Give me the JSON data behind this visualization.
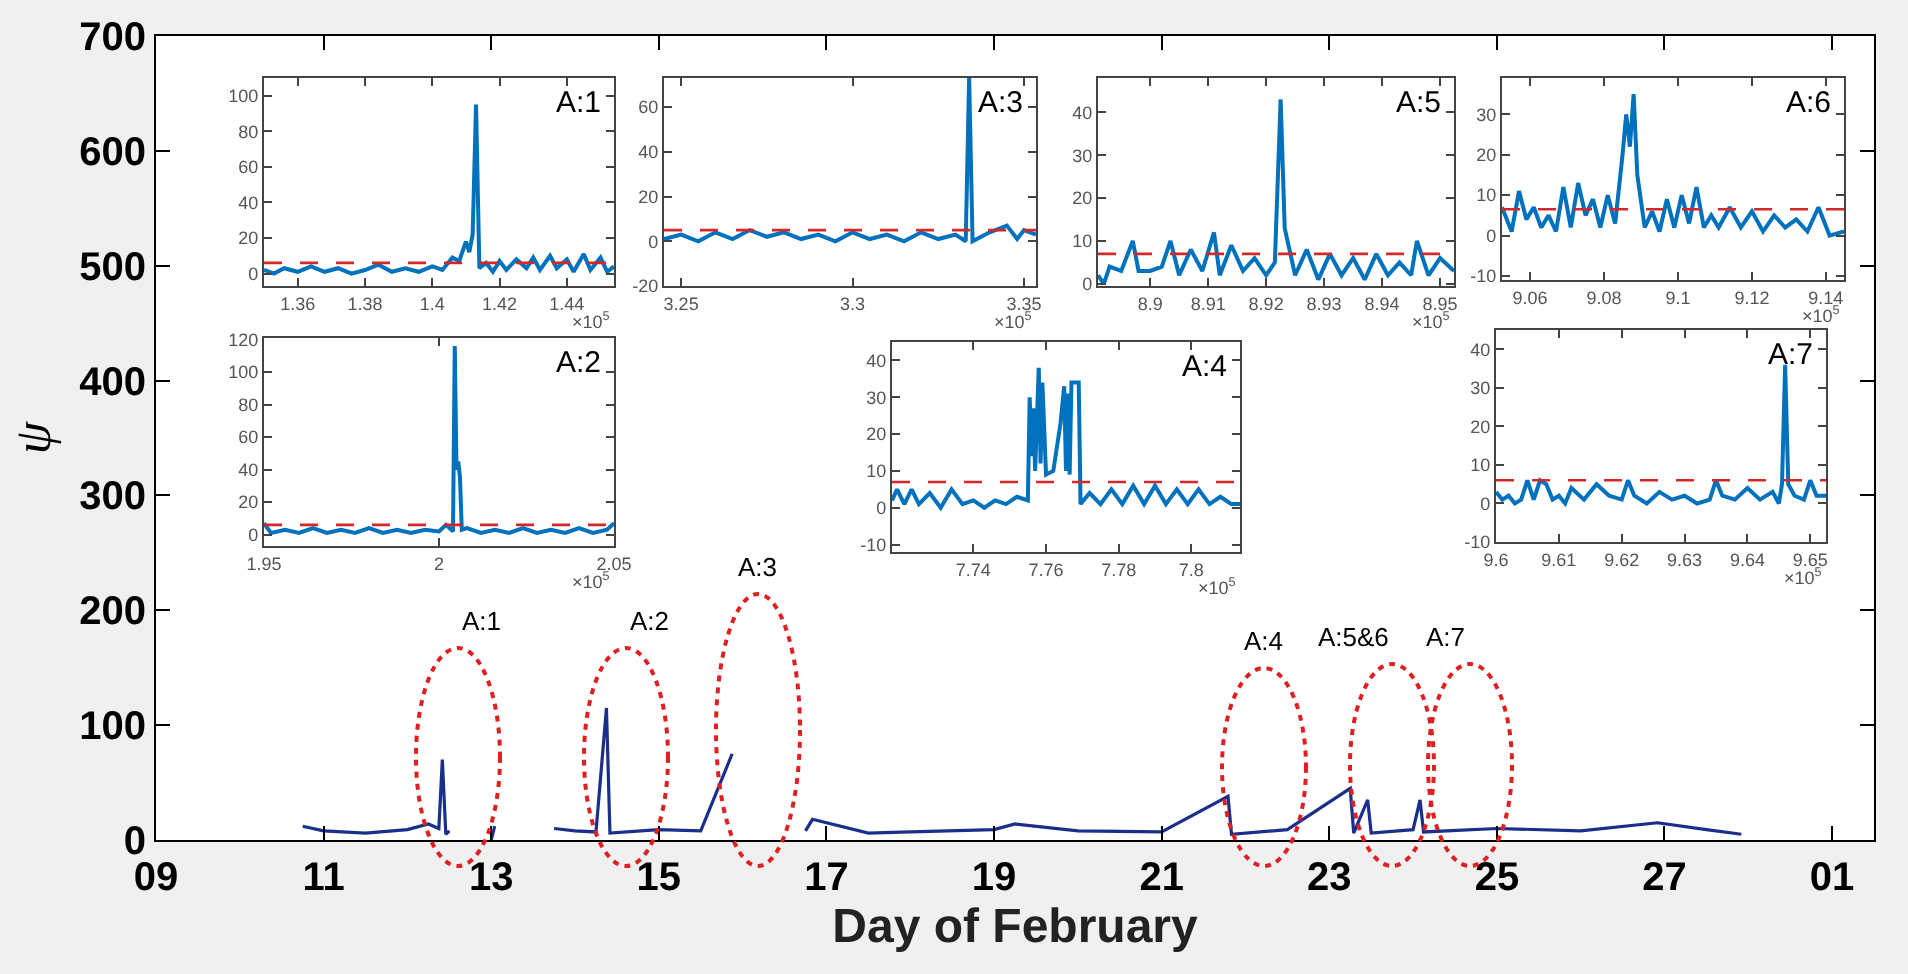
{
  "chart_data": [
    {
      "type": "line",
      "xlabel": "Day of February",
      "ylabel": "ψ",
      "grid": false,
      "line_style": "solid",
      "marker": "none",
      "series": [
        {
          "color": "#1a2f8c",
          "x": [
            "--02-10T18:00",
            "--02-11T00:00",
            "--02-11T12:00",
            "--02-12T00:00",
            "--02-12T06:00",
            "--02-12T09:00",
            "--02-12T10:00",
            "--02-12T11:00",
            "--02-12T12:00",
            "--02-12T13:00",
            "--02-13T00:00",
            "--02-13T01:00",
            "--02-13T02:00",
            "--02-13T18:00",
            "--02-14T00:00",
            "--02-14T06:00",
            "--02-14T09:00",
            "--02-14T10:00",
            "--02-15T00:00",
            "--02-15T12:00",
            "--02-15T21:00",
            "--02-15T22:00",
            "--02-16T18:00",
            "--02-16T20:00",
            "--02-17T12:00",
            "--02-18T00:00",
            "--02-19T00:00",
            "--02-19T06:00",
            "--02-20T00:00",
            "--02-21T00:00",
            "--02-21T19:00",
            "--02-21T20:00",
            "--02-22T12:00",
            "--02-23T06:00",
            "--02-23T07:00",
            "--02-23T11:00",
            "--02-23T12:00",
            "--02-24T00:00",
            "--02-24T02:00",
            "--02-24T03:00",
            "--02-25T00:00",
            "--02-26T00:00",
            "--02-26T22:00",
            "--02-27T12:00",
            "--02-27T22:00"
          ],
          "values": [
            12,
            8,
            6,
            9,
            14,
            10,
            70,
            5,
            8,
            null,
            0,
            12,
            null,
            10,
            8,
            7,
            115,
            6,
            9,
            8,
            75,
            null,
            8,
            18,
            6,
            7,
            9,
            14,
            8,
            7,
            38,
            5,
            9,
            45,
            6,
            35,
            6,
            9,
            35,
            7,
            10,
            8,
            15,
            9,
            5
          ]
        }
      ],
      "xlim": [
        "--02-09T00:00",
        "--03-01T12:00"
      ],
      "xticks": [
        {
          "value": "--02-09",
          "label": "09"
        },
        {
          "value": "--02-11",
          "label": "11"
        },
        {
          "value": "--02-13",
          "label": "13"
        },
        {
          "value": "--02-15",
          "label": "15"
        },
        {
          "value": "--02-17",
          "label": "17"
        },
        {
          "value": "--02-19",
          "label": "19"
        },
        {
          "value": "--02-21",
          "label": "21"
        },
        {
          "value": "--02-23",
          "label": "23"
        },
        {
          "value": "--02-25",
          "label": "25"
        },
        {
          "value": "--02-27",
          "label": "27"
        },
        {
          "value": "--03-01",
          "label": "01"
        }
      ],
      "ylim": [
        0,
        700
      ],
      "yticks": [
        0,
        100,
        200,
        300,
        400,
        500,
        600,
        700
      ],
      "annotations": [
        "A:1",
        "A:2",
        "A:3",
        "A:4",
        "A:5&6",
        "A:7"
      ]
    },
    {
      "type": "line",
      "title": "A:1",
      "grid": false,
      "series": [
        {
          "color": "#0072bd",
          "x": [
            1.35,
            1.353,
            1.356,
            1.36,
            1.364,
            1.368,
            1.372,
            1.376,
            1.38,
            1.384,
            1.388,
            1.392,
            1.396,
            1.4,
            1.403,
            1.406,
            1.408,
            1.41,
            1.411,
            1.412,
            1.413,
            1.414,
            1.416,
            1.418,
            1.42,
            1.422,
            1.425,
            1.428,
            1.43,
            1.432,
            1.435,
            1.437,
            1.44,
            1.442,
            1.445,
            1.447,
            1.45,
            1.452,
            1.454
          ],
          "values": [
            2,
            0,
            3,
            1,
            4,
            1,
            3,
            0,
            2,
            5,
            1,
            3,
            1,
            4,
            2,
            9,
            7,
            18,
            12,
            22,
            95,
            3,
            6,
            1,
            7,
            2,
            8,
            3,
            9,
            2,
            10,
            3,
            8,
            1,
            11,
            2,
            9,
            1,
            4
          ]
        }
      ],
      "xlim": [
        1.35,
        1.454
      ],
      "xticks": [
        1.36,
        1.38,
        1.4,
        1.42,
        1.44
      ],
      "ylim": [
        -7,
        110
      ],
      "yticks": [
        0,
        20,
        40,
        60,
        80,
        100
      ],
      "ref_lines": [
        {
          "axis": "y",
          "value": 6,
          "color": "#d62728",
          "line_style": "dashed"
        }
      ],
      "annotations": [
        "×10$^{5}$"
      ]
    },
    {
      "type": "line",
      "title": "A:3",
      "grid": false,
      "series": [
        {
          "color": "#0072bd",
          "x": [
            3.245,
            3.25,
            3.255,
            3.26,
            3.265,
            3.27,
            3.275,
            3.28,
            3.285,
            3.29,
            3.295,
            3.3,
            3.305,
            3.31,
            3.315,
            3.32,
            3.325,
            3.33,
            3.333,
            3.334,
            3.335,
            3.34,
            3.345,
            3.348,
            3.35,
            3.3535
          ],
          "values": [
            1,
            3,
            0,
            4,
            1,
            5,
            2,
            4,
            1,
            3,
            0,
            4,
            1,
            3,
            0,
            4,
            1,
            3,
            0,
            73,
            0,
            4,
            7,
            1,
            5,
            3
          ]
        }
      ],
      "xlim": [
        3.245,
        3.3535
      ],
      "xticks": [
        3.25,
        3.3,
        3.35
      ],
      "ylim": [
        -20,
        73
      ],
      "yticks": [
        -20,
        0,
        20,
        40,
        60
      ],
      "ref_lines": [
        {
          "axis": "y",
          "value": 5,
          "color": "#d62728",
          "line_style": "dashed"
        }
      ],
      "annotations": [
        "×10$^{5}$"
      ]
    },
    {
      "type": "line",
      "title": "A:5",
      "grid": false,
      "series": [
        {
          "color": "#0072bd",
          "x": [
            8.891,
            8.892,
            8.893,
            8.895,
            8.897,
            8.898,
            8.9,
            8.902,
            8.9035,
            8.905,
            8.907,
            8.909,
            8.911,
            8.912,
            8.914,
            8.916,
            8.918,
            8.92,
            8.9215,
            8.9225,
            8.9232,
            8.925,
            8.927,
            8.929,
            8.931,
            8.933,
            8.935,
            8.937,
            8.939,
            8.941,
            8.943,
            8.945,
            8.946,
            8.948,
            8.95,
            8.9524
          ],
          "values": [
            2,
            0,
            4,
            3,
            10,
            3,
            3,
            4,
            10,
            2,
            8,
            3,
            12,
            2,
            9,
            3,
            6,
            2,
            5,
            43,
            13,
            2,
            8,
            1,
            7,
            2,
            6,
            1,
            7,
            2,
            5,
            2,
            10,
            2,
            6,
            3
          ]
        }
      ],
      "xlim": [
        8.891,
        8.9524
      ],
      "xticks": [
        8.9,
        8.91,
        8.92,
        8.93,
        8.94,
        8.95
      ],
      "ylim": [
        -0.5,
        48
      ],
      "yticks": [
        0,
        10,
        20,
        30,
        40
      ],
      "ref_lines": [
        {
          "axis": "y",
          "value": 7,
          "color": "#d62728",
          "line_style": "dashed"
        }
      ],
      "annotations": [
        "×10$^{5}$"
      ]
    },
    {
      "type": "line",
      "title": "A:6",
      "grid": false,
      "series": [
        {
          "color": "#0072bd",
          "x": [
            9.0524,
            9.055,
            9.057,
            9.059,
            9.061,
            9.063,
            9.065,
            9.067,
            9.069,
            9.071,
            9.073,
            9.075,
            9.077,
            9.079,
            9.081,
            9.083,
            9.085,
            9.086,
            9.087,
            9.088,
            9.089,
            9.091,
            9.093,
            9.095,
            9.097,
            9.099,
            9.101,
            9.103,
            9.105,
            9.107,
            9.109,
            9.111,
            9.114,
            9.117,
            9.12,
            9.123,
            9.126,
            9.129,
            9.132,
            9.135,
            9.138,
            9.141,
            9.1449
          ],
          "values": [
            7,
            1,
            11,
            4,
            7,
            2,
            5,
            1,
            12,
            2,
            13,
            5,
            9,
            2,
            10,
            3,
            20,
            30,
            22,
            35,
            15,
            2,
            6,
            1,
            9,
            2,
            10,
            3,
            12,
            2,
            5,
            2,
            7,
            2,
            6,
            1,
            5,
            2,
            4,
            1,
            7,
            0,
            1
          ]
        }
      ],
      "xlim": [
        9.0524,
        9.1449
      ],
      "xticks": [
        9.06,
        9.08,
        9.1,
        9.12,
        9.14
      ],
      "ylim": [
        -11,
        39
      ],
      "yticks": [
        -10,
        0,
        10,
        20,
        30
      ],
      "ref_lines": [
        {
          "axis": "y",
          "value": 6.5,
          "color": "#d62728",
          "line_style": "dashed"
        }
      ],
      "annotations": [
        "×10$^{5}$"
      ]
    },
    {
      "type": "line",
      "title": "A:2",
      "grid": false,
      "series": [
        {
          "color": "#0072bd",
          "x": [
            1.95,
            1.952,
            1.956,
            1.96,
            1.964,
            1.968,
            1.972,
            1.976,
            1.98,
            1.984,
            1.988,
            1.992,
            1.996,
            2.0,
            2.002,
            2.004,
            2.0045,
            2.005,
            2.0055,
            2.006,
            2.0065,
            2.008,
            2.012,
            2.016,
            2.02,
            2.024,
            2.028,
            2.032,
            2.036,
            2.04,
            2.044,
            2.048,
            2.05
          ],
          "values": [
            7,
            1,
            3,
            1,
            4,
            1,
            3,
            1,
            4,
            1,
            3,
            1,
            3,
            2,
            6,
            2,
            116,
            40,
            45,
            35,
            3,
            4,
            1,
            3,
            1,
            4,
            1,
            3,
            1,
            4,
            1,
            3,
            7
          ]
        }
      ],
      "xlim": [
        1.95,
        2.05
      ],
      "xticks": [
        1.95,
        2,
        2.05
      ],
      "ylim": [
        -7,
        121
      ],
      "yticks": [
        0,
        20,
        40,
        60,
        80,
        100,
        120
      ],
      "ref_lines": [
        {
          "axis": "y",
          "value": 6,
          "color": "#d62728",
          "line_style": "dashed"
        }
      ],
      "annotations": [
        "×10$^{5}$"
      ]
    },
    {
      "type": "line",
      "title": "A:4",
      "grid": false,
      "series": [
        {
          "color": "#0072bd",
          "x": [
            7.7176,
            7.719,
            7.721,
            7.723,
            7.725,
            7.728,
            7.731,
            7.734,
            7.737,
            7.74,
            7.743,
            7.746,
            7.749,
            7.752,
            7.755,
            7.7555,
            7.756,
            7.7565,
            7.757,
            7.758,
            7.7585,
            7.759,
            7.76,
            7.762,
            7.764,
            7.765,
            7.7655,
            7.766,
            7.7665,
            7.767,
            7.769,
            7.7695,
            7.772,
            7.775,
            7.778,
            7.781,
            7.784,
            7.787,
            7.79,
            7.793,
            7.796,
            7.799,
            7.802,
            7.805,
            7.808,
            7.811,
            7.8134
          ],
          "values": [
            2,
            5,
            1,
            5,
            1,
            4,
            0,
            5,
            1,
            2,
            0,
            2,
            1,
            3,
            2,
            30,
            14,
            27,
            10,
            38,
            12,
            34,
            9,
            10,
            23,
            33,
            10,
            31,
            9,
            34,
            34,
            1,
            4,
            1,
            5,
            1,
            6,
            1,
            6,
            1,
            5,
            1,
            5,
            1,
            3,
            1,
            1
          ]
        }
      ],
      "xlim": [
        7.7176,
        7.8134
      ],
      "xticks": [
        7.74,
        7.76,
        7.78,
        7.8
      ],
      "ylim": [
        -12,
        45
      ],
      "yticks": [
        -10,
        0,
        10,
        20,
        30,
        40
      ],
      "ref_lines": [
        {
          "axis": "y",
          "value": 7,
          "color": "#d62728",
          "line_style": "dashed"
        }
      ],
      "annotations": [
        "×10$^{5}$"
      ]
    },
    {
      "type": "line",
      "title": "A:7",
      "grid": false,
      "series": [
        {
          "color": "#0072bd",
          "x": [
            9.6,
            9.601,
            9.602,
            9.603,
            9.604,
            9.605,
            9.606,
            9.607,
            9.608,
            9.609,
            9.61,
            9.611,
            9.612,
            9.614,
            9.616,
            9.618,
            9.62,
            9.621,
            9.622,
            9.624,
            9.626,
            9.628,
            9.63,
            9.632,
            9.634,
            9.635,
            9.636,
            9.638,
            9.64,
            9.642,
            9.644,
            9.645,
            9.6455,
            9.646,
            9.6465,
            9.6475,
            9.649,
            9.65,
            9.651,
            9.6525
          ],
          "values": [
            3,
            1,
            2,
            0,
            1,
            6,
            1,
            6,
            5,
            1,
            2,
            0,
            4,
            1,
            5,
            2,
            1,
            6,
            2,
            0,
            3,
            1,
            2,
            0,
            1,
            6,
            2,
            1,
            4,
            1,
            3,
            0,
            5,
            36,
            5,
            2,
            1,
            6,
            2,
            2
          ]
        }
      ],
      "xlim": [
        9.6,
        9.6525
      ],
      "xticks": [
        9.6,
        9.61,
        9.62,
        9.63,
        9.64,
        9.65
      ],
      "ylim": [
        -10,
        45
      ],
      "yticks": [
        -10,
        0,
        10,
        20,
        30,
        40
      ],
      "ref_lines": [
        {
          "axis": "y",
          "value": 6,
          "color": "#d62728",
          "line_style": "dashed"
        }
      ],
      "annotations": [
        "×10$^{5}$"
      ]
    }
  ]
}
